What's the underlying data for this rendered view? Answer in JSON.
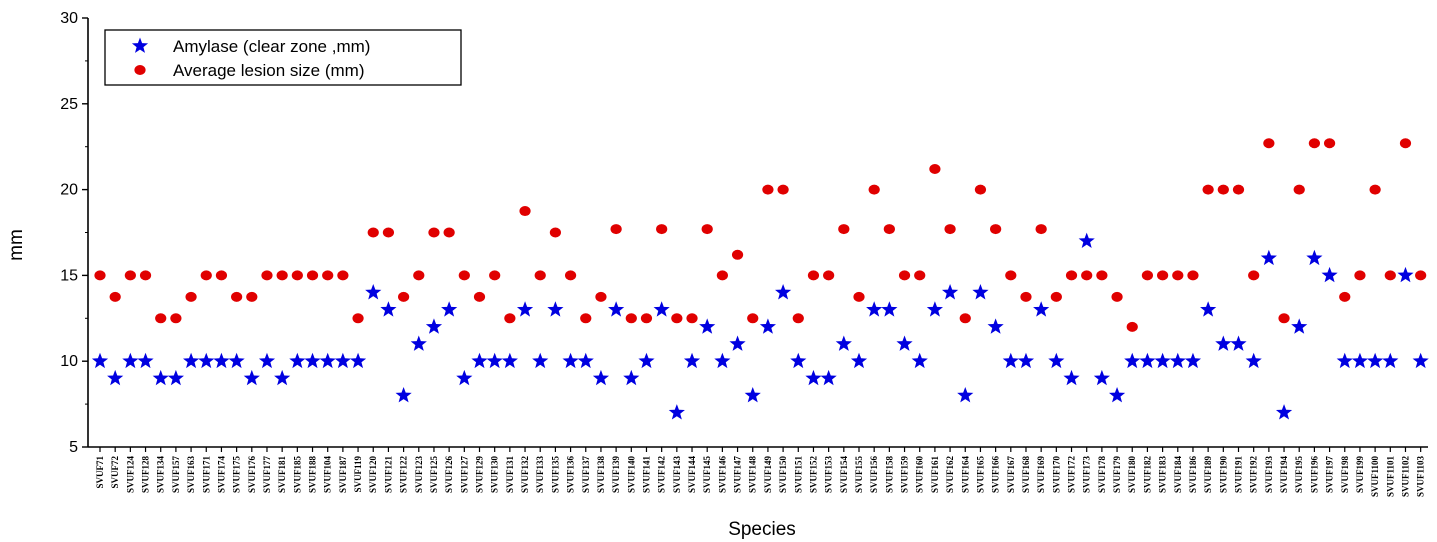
{
  "chart_data": {
    "type": "scatter",
    "title": "",
    "xlabel": "Species",
    "ylabel": "mm",
    "ylim": [
      5,
      30
    ],
    "yticks": [
      5,
      10,
      15,
      20,
      25,
      30
    ],
    "legend_position": "top-left",
    "categories": [
      "SVUF71",
      "SVUF72",
      "SVUF124",
      "SVUF128",
      "SVUF134",
      "SVUF157",
      "SVUF163",
      "SVUF171",
      "SVUF174",
      "SVUF175",
      "SVUF176",
      "SVUF177",
      "SVUF181",
      "SVUF185",
      "SVUF188",
      "SVUF104",
      "SVUF187",
      "SVUF119",
      "SVUF120",
      "SVUF121",
      "SVUF122",
      "SVUF123",
      "SVUF125",
      "SVUF126",
      "SVUF127",
      "SVUF129",
      "SVUF130",
      "SVUF131",
      "SVUF132",
      "SVUF133",
      "SVUF135",
      "SVUF136",
      "SVUF137",
      "SVUF138",
      "SVUF139",
      "SVUF140",
      "SVUF141",
      "SVUF142",
      "SVUF143",
      "SVUF144",
      "SVUF145",
      "SVUF146",
      "SVUF147",
      "SVUF148",
      "SVUF149",
      "SVUF150",
      "SVUF151",
      "SVUF152",
      "SVUF153",
      "SVUF154",
      "SVUF155",
      "SVUF156",
      "SVUF158",
      "SVUF159",
      "SVUF160",
      "SVUF161",
      "SVUF162",
      "SVUF164",
      "SVUF165",
      "SVUF166",
      "SVUF167",
      "SVUF168",
      "SVUF169",
      "SVUF170",
      "SVUF172",
      "SVUF173",
      "SVUF178",
      "SVUF179",
      "SVUF180",
      "SVUF182",
      "SVUF183",
      "SVUF184",
      "SVUF186",
      "SVUF189",
      "SVUF190",
      "SVUF191",
      "SVUF192",
      "SVUF193",
      "SVUF194",
      "SVUF195",
      "SVUF196",
      "SVUF197",
      "SVUF198",
      "SVUF199",
      "SVUF1100",
      "SVUF1101",
      "SVUF1102",
      "SVUF1103"
    ],
    "series": [
      {
        "name": "Amylase (clear zone ,mm)",
        "marker": "star",
        "color": "#0000e0",
        "values": [
          10,
          9,
          10,
          10,
          9,
          9,
          10,
          10,
          10,
          10,
          9,
          10,
          9,
          10,
          10,
          10,
          10,
          10,
          14,
          13,
          8,
          11,
          12,
          13,
          9,
          10,
          10,
          10,
          13,
          10,
          13,
          10,
          10,
          9,
          13,
          9,
          10,
          13,
          7,
          10,
          12,
          10,
          11,
          8,
          12,
          14,
          10,
          9,
          9,
          11,
          10,
          13,
          13,
          11,
          10,
          13,
          14,
          8,
          14,
          12,
          10,
          10,
          13,
          10,
          9,
          17,
          9,
          8,
          10,
          10,
          10,
          10,
          10,
          13,
          11,
          11,
          10,
          16,
          7,
          12,
          16,
          15,
          10,
          10,
          10,
          10,
          15,
          10
        ]
      },
      {
        "name": "Average lesion size (mm)",
        "marker": "circle",
        "color": "#e00000",
        "values": [
          15,
          13.75,
          15,
          15,
          12.5,
          12.5,
          13.75,
          15,
          15,
          13.75,
          13.75,
          15,
          15,
          15,
          15,
          15,
          15,
          12.5,
          17.5,
          17.5,
          13.75,
          15,
          17.5,
          17.5,
          15,
          13.75,
          15,
          12.5,
          18.75,
          15,
          17.5,
          15,
          12.5,
          13.75,
          17.7,
          12.5,
          12.5,
          17.7,
          12.5,
          12.5,
          17.7,
          15,
          16.2,
          12.5,
          20,
          20,
          12.5,
          15,
          15,
          17.7,
          13.75,
          20,
          17.7,
          15,
          15,
          21.2,
          17.7,
          12.5,
          20,
          17.7,
          15,
          13.75,
          17.7,
          13.75,
          15,
          15,
          15,
          13.75,
          12,
          15,
          15,
          15,
          15,
          20,
          20,
          20,
          15,
          22.7,
          12.5,
          20,
          22.7,
          22.7,
          13.75,
          15,
          20,
          15,
          22.7,
          15
        ]
      }
    ]
  }
}
